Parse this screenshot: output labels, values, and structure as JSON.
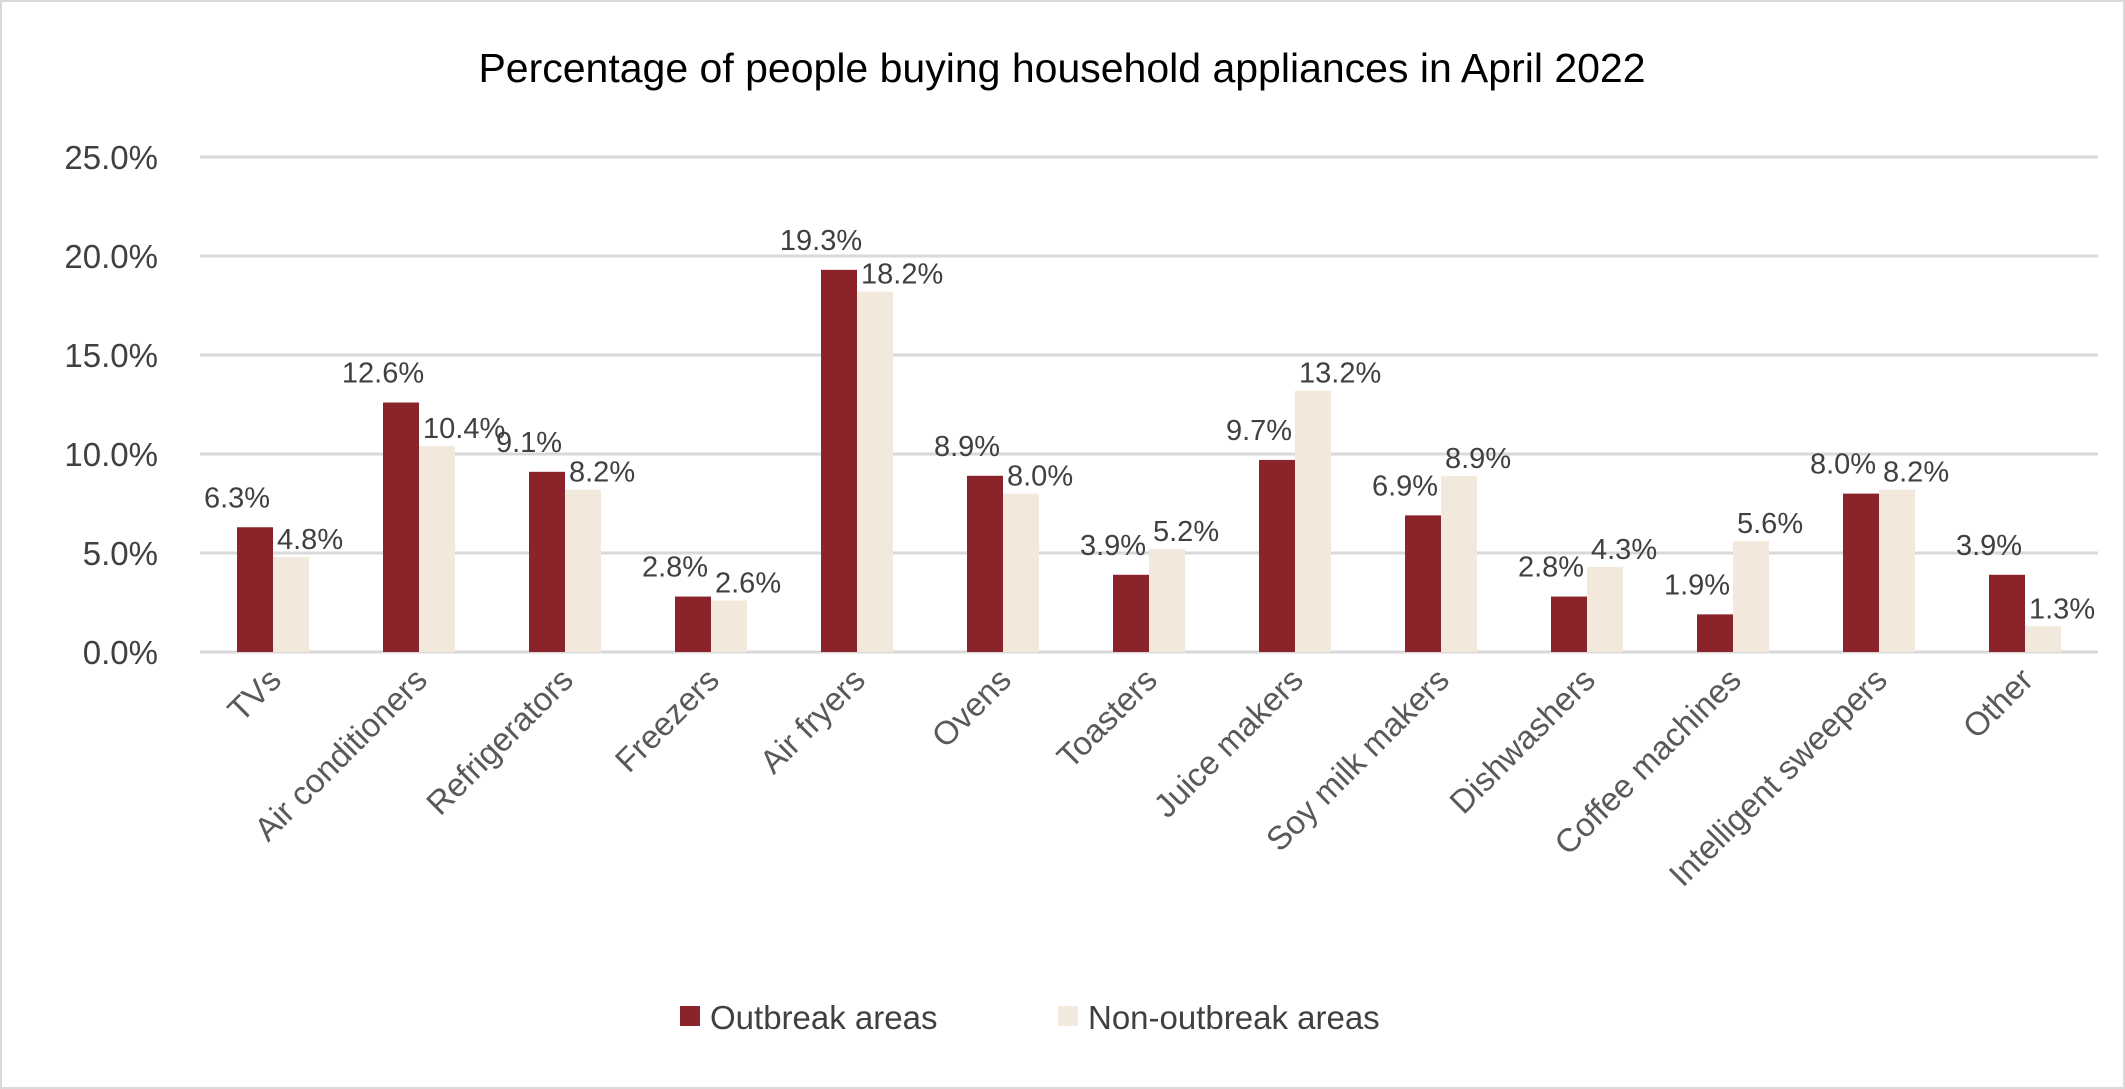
{
  "chart_data": {
    "type": "bar",
    "title": "Percentage of people buying household appliances in April 2022",
    "xlabel": "",
    "ylabel": "",
    "ylim": [
      0,
      25
    ],
    "yticks": [
      "0.0%",
      "5.0%",
      "10.0%",
      "15.0%",
      "20.0%",
      "25.0%"
    ],
    "grid": true,
    "legend_position": "bottom",
    "categories": [
      "TVs",
      "Air conditioners",
      "Refrigerators",
      "Freezers",
      "Air fryers",
      "Ovens",
      "Toasters",
      "Juice makers",
      "Soy milk makers",
      "Dishwashers",
      "Coffee machines",
      "Intelligent sweepers",
      "Other"
    ],
    "series": [
      {
        "name": "Outbreak areas",
        "color": "#8B232B",
        "values": [
          6.3,
          12.6,
          9.1,
          2.8,
          19.3,
          8.9,
          3.9,
          9.7,
          6.9,
          2.8,
          1.9,
          8.0,
          3.9
        ]
      },
      {
        "name": "Non-outbreak areas",
        "color": "#F2E9DC",
        "values": [
          4.8,
          10.4,
          8.2,
          2.6,
          18.2,
          8.0,
          5.2,
          13.2,
          8.9,
          4.3,
          5.6,
          8.2,
          1.3
        ]
      }
    ]
  }
}
